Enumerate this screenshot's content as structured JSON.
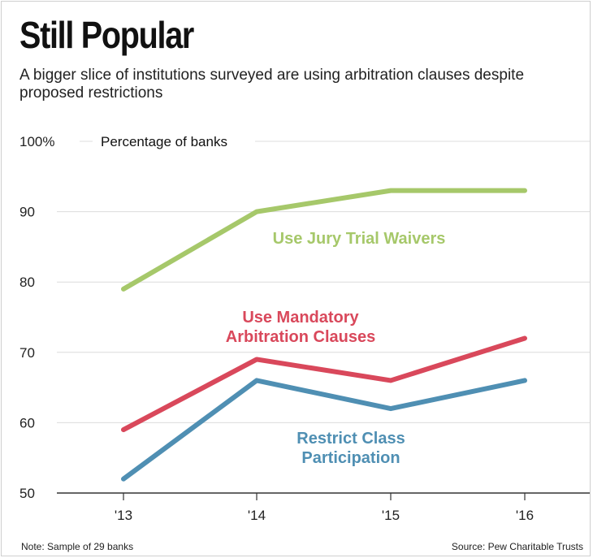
{
  "header": {
    "title": "Still Popular",
    "subtitle": "A bigger slice of institutions surveyed are using arbitration clauses despite proposed restrictions"
  },
  "footer": {
    "note": "Note: Sample of 29 banks",
    "source": "Source: Pew Charitable Trusts"
  },
  "chart_data": {
    "type": "line",
    "ylabel": "Percentage of banks",
    "x": [
      "'13",
      "'14",
      "'15",
      "'16"
    ],
    "ylim": [
      50,
      100
    ],
    "yticks": [
      50,
      60,
      70,
      80,
      90,
      100
    ],
    "ytick_labels": [
      "50",
      "60",
      "70",
      "80",
      "90",
      "100%"
    ],
    "grid": true,
    "series": [
      {
        "name": "Use Jury Trial Waivers",
        "label_lines": [
          "Use Jury Trial Waivers"
        ],
        "values": [
          79,
          90,
          93,
          93
        ],
        "color": "#a6c86a"
      },
      {
        "name": "Use Mandatory Arbitration Clauses",
        "label_lines": [
          "Use Mandatory",
          "Arbitration Clauses"
        ],
        "values": [
          59,
          69,
          66,
          72
        ],
        "color": "#d9485b"
      },
      {
        "name": "Restrict Class Participation",
        "label_lines": [
          "Restrict Class",
          "Participation"
        ],
        "values": [
          52,
          66,
          62,
          66
        ],
        "color": "#4f8fb3"
      }
    ]
  }
}
